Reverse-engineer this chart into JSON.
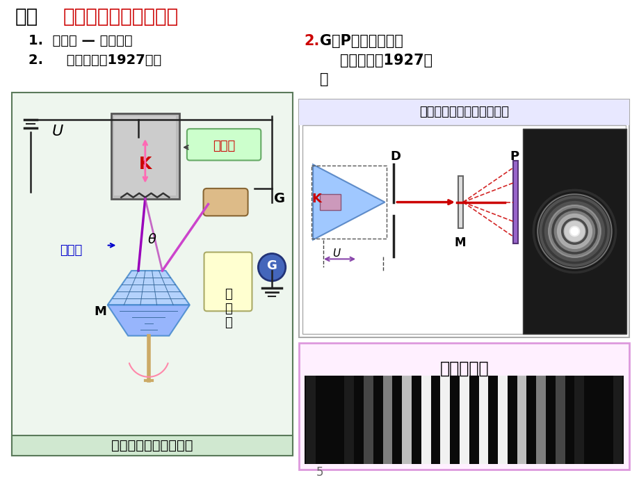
{
  "bg_color": "#FFFFFF",
  "title_prefix": "三、",
  "title_main": "德布罗意波的实验证明",
  "left_text1": "1.  戴维孙 — 革末电子",
  "left_text2": "2.     衍射实验（1927年）",
  "right_num": "2.",
  "right_t1": " G．P．汤姆孙电子",
  "right_t2": "    衍射实验（1927年",
  "right_t3": "）",
  "left_panel_bg": "#EEF6EE",
  "left_panel_border": "#5A7A5A",
  "left_caption": "电子被镍晶体衍射实验",
  "left_caption_bg": "#D0E8D0",
  "gun_label": "电子枪",
  "gun_box_bg": "#CCFFCC",
  "beam_label": "电子束",
  "scat_label": "散\n射\n线",
  "right_top_caption": "电子束透过多晶铝箔的衍射",
  "right_top_bg": "#FFFFFF",
  "right_top_border": "#AAAAAA",
  "right_top_header_bg": "#E8E8FF",
  "right_bot_label": "双缝衍射图",
  "right_bot_bg": "#FFF0FF",
  "right_bot_border": "#DD99DD",
  "page_num": "5",
  "red": "#CC0000",
  "blue": "#0000CC",
  "purple": "#8800CC",
  "black": "#000000",
  "white": "#FFFFFF",
  "gray_gun": "#999999",
  "crystal_blue": "#88BBFF",
  "crystal_edge": "#3366CC",
  "galv_color": "#3355AA"
}
